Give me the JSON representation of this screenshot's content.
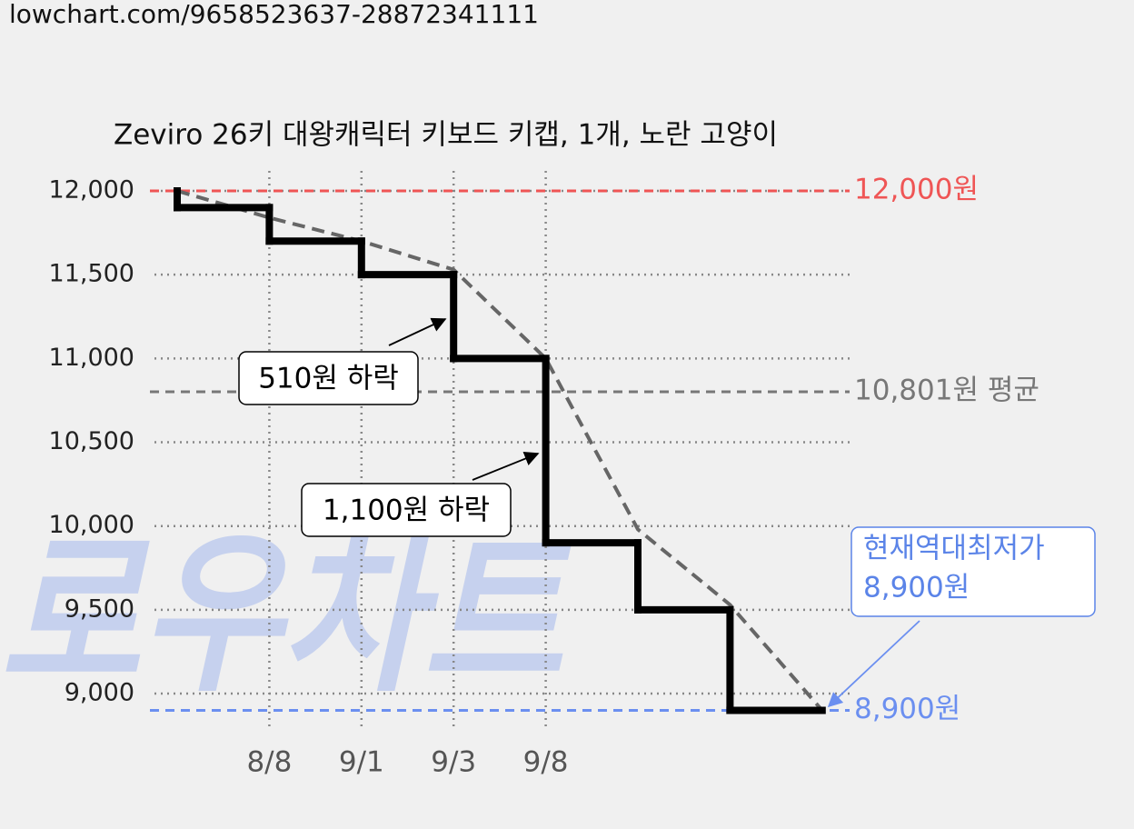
{
  "chart_data": {
    "type": "step",
    "url": "lowchart.com/9658523637-28872341111",
    "watermark": "로우차트",
    "title": "Zeviro 26키 대왕캐릭터 키보드 키캡, 1개, 노란 고양이",
    "categories": [
      null,
      "8/8",
      "9/1",
      "9/3",
      "9/8",
      null,
      null,
      null
    ],
    "values": [
      12000,
      11900,
      11700,
      11500,
      11000,
      9900,
      9500,
      8900
    ],
    "color": "#000000",
    "trend_values": [
      12000,
      11840,
      11700,
      11530,
      11000,
      9980,
      9530,
      8900
    ],
    "trend_color": "#666666",
    "ylim": [
      8800,
      12150
    ],
    "yticks": [
      {
        "value": 9000,
        "label": "9,000"
      },
      {
        "value": 9500,
        "label": "9,500"
      },
      {
        "value": 10000,
        "label": "10,000"
      },
      {
        "value": 10500,
        "label": "10,500"
      },
      {
        "value": 11000,
        "label": "11,000"
      },
      {
        "value": 11500,
        "label": "11,500"
      },
      {
        "value": 12000,
        "label": "12,000"
      }
    ],
    "grid": true,
    "reference_lines": [
      {
        "value": 12000,
        "label": "12,000원",
        "color": "#ef5555"
      },
      {
        "value": 10801,
        "label": "10,801원 평균",
        "color": "#777777"
      },
      {
        "value": 8900,
        "label": "8,900원",
        "color": "#6b8ff0"
      }
    ],
    "annotations": [
      {
        "text": "510원 하락"
      },
      {
        "text": "1,100원 하락"
      }
    ],
    "callout": {
      "lines": [
        "현재역대최저가",
        "8,900원"
      ],
      "color": "#5b84e8"
    }
  }
}
